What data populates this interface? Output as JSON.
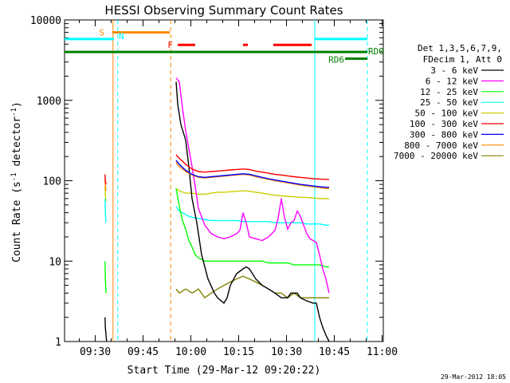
{
  "chart_data": {
    "type": "line",
    "title": "HESSI Observing Summary Count Rates",
    "xlabel": "Start Time (29-Mar-12 09:20:22)",
    "ylabel": "Count Rate (s-1 detector-1)",
    "ylabel_main": "Count Rate (s",
    "ylabel_sup1": "-1",
    "ylabel_mid": " detector",
    "ylabel_sup2": "-1",
    "ylabel_end": ")",
    "x_unit": "minutes since 09:20:22",
    "xlim": [
      0,
      100
    ],
    "ylim": [
      1,
      10000
    ],
    "y_scale": "log",
    "x_ticks": [
      {
        "label": "09:30",
        "value": 9.63
      },
      {
        "label": "09:45",
        "value": 24.63
      },
      {
        "label": "10:00",
        "value": 39.63
      },
      {
        "label": "10:15",
        "value": 54.63
      },
      {
        "label": "10:30",
        "value": 69.63
      },
      {
        "label": "10:45",
        "value": 84.63
      },
      {
        "label": "11:00",
        "value": 99.63
      }
    ],
    "y_ticks": [
      {
        "label": "1",
        "value": 1
      },
      {
        "label": "10",
        "value": 10
      },
      {
        "label": "100",
        "value": 100
      },
      {
        "label": "1000",
        "value": 1000
      },
      {
        "label": "10000",
        "value": 10000
      }
    ],
    "legend": {
      "header1": "Det 1,3,5,6,7,9,",
      "header2": "FDecim 1, Att 0",
      "placement": "right"
    },
    "series": [
      {
        "name": "3 - 6 keV",
        "color": "#000000",
        "x": [
          12.7,
          12.8,
          13.2,
          35.0,
          35.5,
          36.5,
          38,
          39,
          40,
          41.5,
          43,
          45,
          47,
          48,
          50,
          51,
          52,
          54,
          56,
          57,
          58,
          60,
          62,
          64,
          66,
          68,
          70,
          71,
          73,
          74,
          76,
          78,
          79,
          80,
          81,
          82,
          83
        ],
        "y": [
          2,
          1.5,
          1,
          1700,
          900,
          500,
          320,
          150,
          60,
          30,
          12,
          6,
          4,
          3.5,
          3,
          3.5,
          5,
          7,
          8,
          8.5,
          8,
          6,
          5,
          4.5,
          4,
          3.5,
          3.5,
          4,
          4,
          3.5,
          3.2,
          3,
          3,
          2,
          1.5,
          1.2,
          1
        ]
      },
      {
        "name": "6 - 12 keV",
        "color": "#ff00ff",
        "x": [
          35.0,
          36.0,
          37,
          38,
          39,
          40,
          41,
          42,
          44,
          46,
          48,
          50,
          52,
          54,
          55,
          56,
          57,
          58,
          60,
          62,
          64,
          66,
          67,
          68,
          69,
          70,
          71,
          72,
          73,
          74,
          75,
          76,
          77,
          78,
          79,
          80,
          81,
          82,
          83
        ],
        "y": [
          1900,
          1700,
          800,
          420,
          250,
          150,
          85,
          45,
          28,
          22,
          20,
          19,
          20,
          22,
          24,
          40,
          30,
          20,
          19,
          18,
          20,
          24,
          34,
          60,
          35,
          25,
          30,
          32,
          42,
          36,
          28,
          22,
          19,
          18,
          17,
          12,
          8,
          6,
          4
        ]
      },
      {
        "name": "12 - 25 keV",
        "color": "#00ff00",
        "x": [
          12.7,
          12.8,
          13.0,
          35.0,
          36,
          37,
          38,
          39,
          40,
          41,
          42,
          44,
          46,
          48,
          50,
          52,
          54,
          56,
          58,
          60,
          62,
          64,
          66,
          68,
          70,
          72,
          74,
          76,
          78,
          80,
          82,
          83
        ],
        "y": [
          10,
          6,
          4,
          80,
          48,
          32,
          25,
          18,
          15,
          12,
          11,
          10,
          10,
          10,
          10,
          10,
          10,
          10,
          10,
          10,
          10,
          9.5,
          9.5,
          9.5,
          9.5,
          9,
          9,
          9,
          9,
          9,
          8.5,
          8.5
        ]
      },
      {
        "name": "25 - 50 keV",
        "color": "#00ffff",
        "x": [
          12.7,
          12.8,
          13.0,
          35.0,
          36,
          37,
          38,
          39,
          40,
          42,
          44,
          46,
          48,
          50,
          52,
          54,
          56,
          58,
          60,
          62,
          64,
          66,
          68,
          70,
          72,
          74,
          76,
          78,
          80,
          82,
          83
        ],
        "y": [
          60,
          40,
          30,
          48,
          42,
          40,
          38,
          36,
          35,
          34,
          33,
          32,
          32,
          32,
          32,
          32,
          31,
          31,
          31,
          31,
          31,
          30,
          30,
          30,
          30,
          30,
          29,
          29,
          29,
          28,
          28
        ]
      },
      {
        "name": "50 - 100 keV",
        "color": "#cccc00",
        "x": [
          12.7,
          12.8,
          13.0,
          35.0,
          36,
          38,
          40,
          42,
          44,
          46,
          48,
          50,
          52,
          54,
          56,
          58,
          60,
          62,
          64,
          66,
          68,
          70,
          72,
          74,
          76,
          78,
          80,
          82,
          83
        ],
        "y": [
          85,
          65,
          55,
          80,
          75,
          70,
          70,
          68,
          68,
          70,
          72,
          72,
          73,
          74,
          75,
          74,
          72,
          70,
          68,
          66,
          65,
          64,
          63,
          62,
          62,
          61,
          60,
          60,
          60
        ]
      },
      {
        "name": "100 - 300 keV",
        "color": "#ff0000",
        "x": [
          12.7,
          12.8,
          13.0,
          35.0,
          36,
          38,
          40,
          42,
          44,
          46,
          48,
          50,
          52,
          54,
          56,
          58,
          60,
          62,
          64,
          66,
          68,
          70,
          72,
          74,
          76,
          78,
          80,
          82,
          83
        ],
        "y": [
          120,
          100,
          90,
          210,
          190,
          160,
          140,
          130,
          128,
          130,
          132,
          134,
          136,
          138,
          140,
          138,
          132,
          128,
          124,
          120,
          118,
          115,
          112,
          110,
          108,
          106,
          105,
          104,
          104
        ]
      },
      {
        "name": "300 - 800 keV",
        "color": "#0000ff",
        "x": [
          35.0,
          36,
          38,
          40,
          42,
          44,
          46,
          48,
          50,
          52,
          54,
          56,
          58,
          60,
          62,
          64,
          66,
          68,
          70,
          72,
          74,
          76,
          78,
          80,
          82,
          83
        ],
        "y": [
          180,
          160,
          135,
          120,
          112,
          110,
          112,
          114,
          116,
          118,
          120,
          122,
          120,
          115,
          110,
          106,
          102,
          99,
          96,
          93,
          90,
          88,
          86,
          84,
          83,
          83
        ]
      },
      {
        "name": "800 - 7000 keV",
        "color": "#ff8800",
        "x": [
          12.7,
          12.8,
          13.0,
          35.0,
          36,
          38,
          40,
          42,
          44,
          46,
          48,
          50,
          52,
          54,
          56,
          58,
          60,
          62,
          64,
          66,
          68,
          70,
          72,
          74,
          76,
          78,
          80,
          82,
          83
        ],
        "y": [
          105,
          85,
          75,
          170,
          150,
          130,
          118,
          110,
          108,
          110,
          112,
          114,
          116,
          118,
          120,
          118,
          112,
          108,
          104,
          100,
          97,
          94,
          91,
          88,
          86,
          84,
          82,
          80,
          80
        ]
      },
      {
        "name": "7000 - 20000 keV",
        "color": "#808000",
        "x": [
          35.0,
          36,
          38,
          40,
          42,
          44,
          46,
          48,
          50,
          52,
          54,
          56,
          58,
          60,
          62,
          64,
          66,
          68,
          70,
          72,
          74,
          76,
          78,
          80,
          82,
          83
        ],
        "y": [
          4.5,
          4,
          4.5,
          4,
          4.5,
          3.5,
          4,
          4.5,
          5,
          5.5,
          6,
          6.5,
          6,
          5.5,
          5,
          4.5,
          4,
          4,
          3.5,
          4,
          3.5,
          3.5,
          3.5,
          3.5,
          3.5,
          3.5
        ]
      }
    ],
    "flags": [
      {
        "label": "S",
        "color": "#ff8800",
        "y": 7000,
        "segments": [
          [
            15.0,
            33.0
          ]
        ]
      },
      {
        "label": "N",
        "color": "#00ffff",
        "y": 5800,
        "segments": [
          [
            0,
            15.5
          ],
          [
            78.5,
            95.0
          ]
        ]
      },
      {
        "label": "F",
        "color": "#ff0000",
        "y": 4900,
        "segments": [
          [
            35.5,
            41.0
          ],
          [
            56.0,
            57.5
          ],
          [
            65.5,
            77.5
          ]
        ]
      },
      {
        "label": "RD0",
        "color": "#008000",
        "y": 4000,
        "segments": [
          [
            0,
            95.0
          ]
        ]
      },
      {
        "label": "RD6",
        "color": "#008000",
        "y": 3300,
        "segments": [
          [
            88.0,
            95.0
          ]
        ]
      }
    ],
    "vlines": [
      {
        "x": 15.2,
        "color": "#ff8800",
        "style": "solid"
      },
      {
        "x": 16.7,
        "color": "#00ffff",
        "style": "dashed"
      },
      {
        "x": 33.3,
        "color": "#ff8800",
        "style": "dashed"
      },
      {
        "x": 78.5,
        "color": "#00ffff",
        "style": "solid"
      },
      {
        "x": 95.0,
        "color": "#00ffff",
        "style": "dashed"
      }
    ],
    "timestamp": "29-Mar-2012 18:05"
  }
}
